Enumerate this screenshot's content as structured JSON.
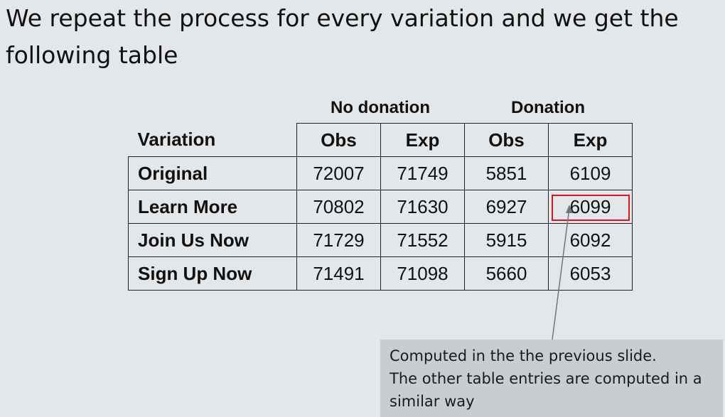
{
  "slide": {
    "title": "We repeat the process for every variation and we get the following table"
  },
  "table": {
    "group_headers": [
      "No donation",
      "Donation"
    ],
    "column_headers": [
      "Variation",
      "Obs",
      "Exp",
      "Obs",
      "Exp"
    ],
    "rows": [
      {
        "variation": "Original",
        "values": [
          "72007",
          "71749",
          "5851",
          "6109"
        ]
      },
      {
        "variation": "Learn More",
        "values": [
          "70802",
          "71630",
          "6927",
          "6099"
        ]
      },
      {
        "variation": "Join Us Now",
        "values": [
          "71729",
          "71552",
          "5915",
          "6092"
        ]
      },
      {
        "variation": "Sign Up Now",
        "values": [
          "71491",
          "71098",
          "5660",
          "6053"
        ]
      }
    ]
  },
  "callout": {
    "line1": "Computed in the the previous slide.",
    "line2": "The other table entries are computed in a similar way"
  },
  "colors": {
    "background": "#e4e7ea",
    "highlight_border": "#e0141c",
    "callout_background": "#c9cdd2"
  }
}
